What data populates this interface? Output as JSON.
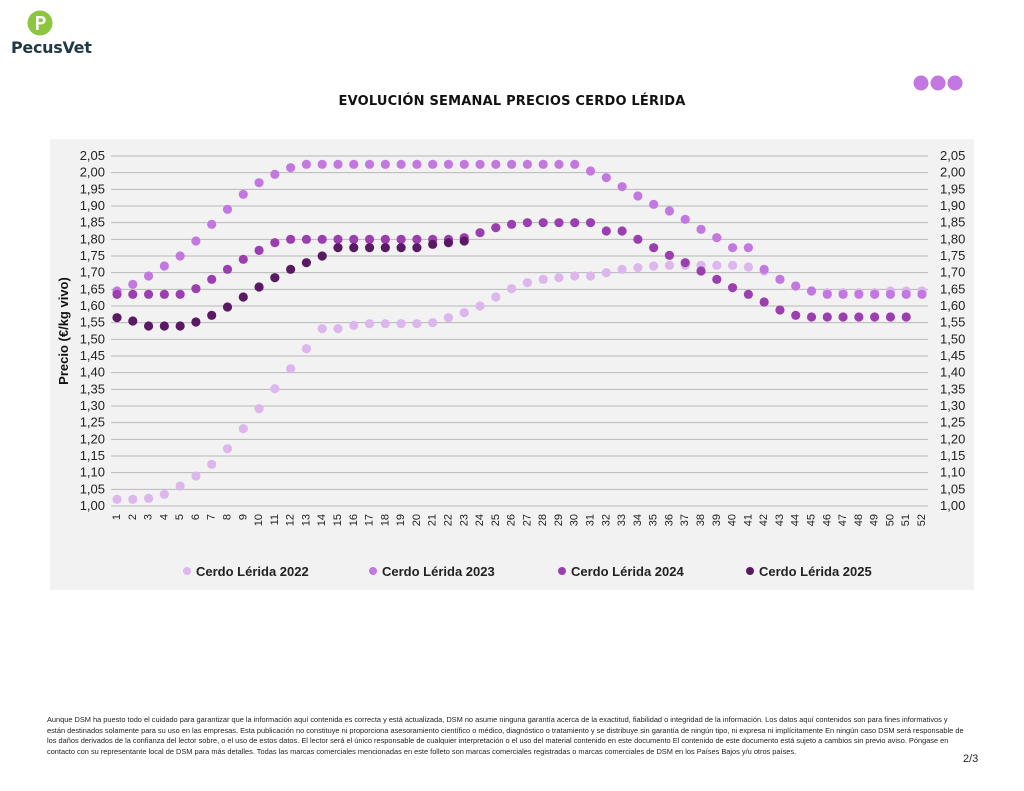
{
  "brand": {
    "name": "PecusVet"
  },
  "title": "EVOLUCIÓN SEMANAL PRECIOS CERDO LÉRIDA",
  "colors": {
    "s2022": "#dcb6ec",
    "s2023": "#c278e0",
    "s2024": "#9b3fb0",
    "s2025": "#5a1a63",
    "logo_green": "#8cc63f",
    "logo_text": "#1f3a43",
    "dots": "#c278e0"
  },
  "chart_data": {
    "type": "scatter",
    "title": "EVOLUCIÓN SEMANAL PRECIOS CERDO LÉRIDA",
    "xlabel": "",
    "ylabel": "Precio (€/kg vivo)",
    "ylim": [
      1.0,
      2.05
    ],
    "y_ticks": [
      "1,00",
      "1,05",
      "1,10",
      "1,15",
      "1,20",
      "1,25",
      "1,30",
      "1,35",
      "1,40",
      "1,45",
      "1,50",
      "1,55",
      "1,60",
      "1,65",
      "1,70",
      "1,75",
      "1,80",
      "1,85",
      "1,90",
      "1,95",
      "2,00",
      "2,05"
    ],
    "x_ticks": [
      "1",
      "2",
      "3",
      "4",
      "5",
      "6",
      "7",
      "8",
      "9",
      "10",
      "11",
      "12",
      "13",
      "14",
      "15",
      "16",
      "17",
      "18",
      "19",
      "20",
      "21",
      "22",
      "23",
      "24",
      "25",
      "26",
      "27",
      "28",
      "29",
      "30",
      "31",
      "32",
      "33",
      "34",
      "35",
      "36",
      "37",
      "38",
      "39",
      "40",
      "41",
      "42",
      "43",
      "44",
      "45",
      "46",
      "47",
      "48",
      "49",
      "50",
      "51",
      "52"
    ],
    "grid": true,
    "legend": "bottom",
    "series": [
      {
        "name": "Cerdo Lérida 2022",
        "color": "#dcb6ec",
        "values": [
          1.02,
          1.02,
          1.023,
          1.035,
          1.06,
          1.09,
          1.125,
          1.172,
          1.232,
          1.292,
          1.352,
          1.412,
          1.472,
          1.532,
          1.532,
          1.542,
          1.547,
          1.547,
          1.547,
          1.547,
          1.55,
          1.565,
          1.58,
          1.6,
          1.627,
          1.652,
          1.67,
          1.68,
          1.685,
          1.69,
          1.69,
          1.7,
          1.71,
          1.715,
          1.72,
          1.722,
          1.722,
          1.722,
          1.722,
          1.722,
          1.717,
          1.705,
          1.68,
          1.66,
          1.645,
          1.64,
          1.64,
          1.64,
          1.64,
          1.645,
          1.645,
          1.645
        ]
      },
      {
        "name": "Cerdo Lérida 2023",
        "color": "#c278e0",
        "values": [
          1.645,
          1.665,
          1.69,
          1.72,
          1.75,
          1.795,
          1.845,
          1.89,
          1.935,
          1.97,
          1.995,
          2.015,
          2.025,
          2.025,
          2.025,
          2.025,
          2.025,
          2.025,
          2.025,
          2.025,
          2.025,
          2.025,
          2.025,
          2.025,
          2.025,
          2.025,
          2.025,
          2.025,
          2.025,
          2.025,
          2.005,
          1.985,
          1.958,
          1.93,
          1.905,
          1.885,
          1.86,
          1.83,
          1.805,
          1.775,
          1.775,
          1.71,
          1.68,
          1.66,
          1.645,
          1.635,
          1.635,
          1.635,
          1.635,
          1.635,
          1.635,
          1.635
        ]
      },
      {
        "name": "Cerdo Lérida 2024",
        "color": "#9b3fb0",
        "values": [
          1.635,
          1.635,
          1.635,
          1.635,
          1.635,
          1.652,
          1.68,
          1.71,
          1.74,
          1.767,
          1.79,
          1.8,
          1.8,
          1.8,
          1.8,
          1.8,
          1.8,
          1.8,
          1.8,
          1.8,
          1.8,
          1.8,
          1.805,
          1.82,
          1.835,
          1.845,
          1.85,
          1.85,
          1.85,
          1.85,
          1.85,
          1.825,
          1.825,
          1.8,
          1.775,
          1.752,
          1.73,
          1.705,
          1.68,
          1.655,
          1.635,
          1.612,
          1.588,
          1.572,
          1.567,
          1.567,
          1.567,
          1.567,
          1.567,
          1.567,
          1.567,
          null
        ]
      },
      {
        "name": "Cerdo Lérida 2025",
        "color": "#5a1a63",
        "values": [
          1.565,
          1.555,
          1.54,
          1.54,
          1.54,
          1.552,
          1.572,
          1.597,
          1.627,
          1.657,
          1.685,
          1.71,
          1.73,
          1.75,
          1.775,
          1.775,
          1.775,
          1.775,
          1.775,
          1.775,
          1.785,
          1.79,
          1.795,
          null,
          null,
          null,
          null,
          null,
          null,
          null,
          null,
          null,
          null,
          null,
          null,
          null,
          null,
          null,
          null,
          null,
          null,
          null,
          null,
          null,
          null,
          null,
          null,
          null,
          null,
          null,
          null,
          null
        ]
      }
    ]
  },
  "footer": {
    "disclaimer": "Aunque DSM ha puesto todo el cuidado para garantizar que la información aquí contenida es correcta y está actualizada, DSM no asume ninguna garantía acerca de la exactitud, fiabilidad o integridad de la información. Los datos aquí contenidos son para fines informativos y están destinados solamente para su uso en las empresas. Esta publicación no constituye ni proporciona asesoramiento científico o médico, diagnóstico o tratamiento y se distribuye sin garantía de ningún tipo, ni expresa ni implícitamente En ningún caso DSM será responsable de los daños derivados de la confianza del lector sobre, o el uso de estos datos. El lector será el único responsable de cualquier interpretación o el uso del material contenido en este documento El contenido de este documento está sujeto a cambios sin previo aviso. Póngase en contacto con su representante local de DSM para más detalles. Todas las marcas comerciales mencionadas en este folleto son marcas comerciales registradas o marcas comerciales de DSM en los Países Bajos y/u otros países.",
    "page": "2/3"
  }
}
